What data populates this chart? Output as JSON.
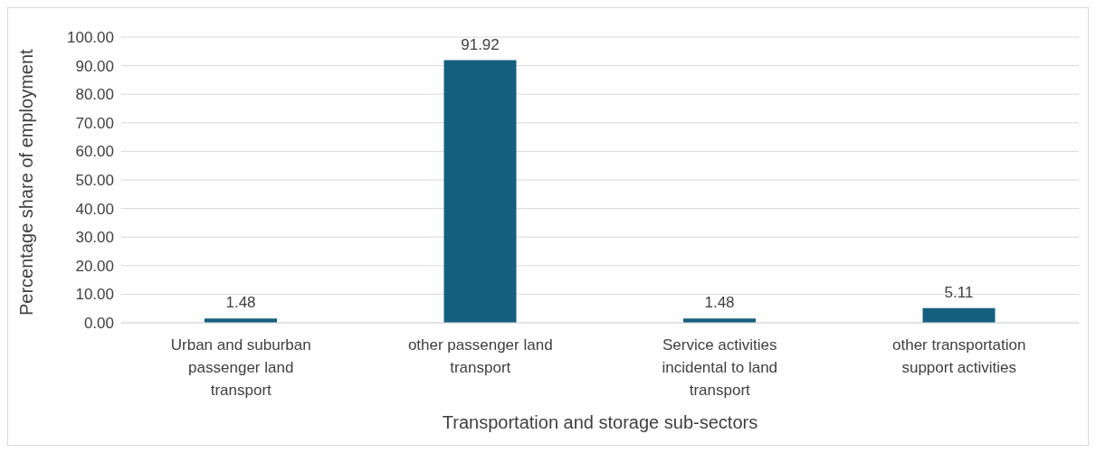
{
  "chart_data": {
    "type": "bar",
    "xlabel": "Transportation and storage sub-sectors",
    "ylabel": "Percentage share of employment",
    "categories": [
      "Urban and suburban passenger land transport",
      "other passenger land transport",
      "Service activities incidental to land transport",
      "other transportation support activities"
    ],
    "values": [
      1.48,
      91.92,
      1.48,
      5.11
    ],
    "color": "#155f7e",
    "ylim": [
      0,
      100
    ],
    "yticks": [
      {
        "value": 0,
        "label": "0.00"
      },
      {
        "value": 10,
        "label": "10.00"
      },
      {
        "value": 20,
        "label": "20.00"
      },
      {
        "value": 30,
        "label": "30.00"
      },
      {
        "value": 40,
        "label": "40.00"
      },
      {
        "value": 50,
        "label": "50.00"
      },
      {
        "value": 60,
        "label": "60.00"
      },
      {
        "value": 70,
        "label": "70.00"
      },
      {
        "value": 80,
        "label": "80.00"
      },
      {
        "value": 90,
        "label": "90.00"
      },
      {
        "value": 100,
        "label": "100.00"
      }
    ],
    "grid": "y",
    "data_labels": true,
    "legend": false
  }
}
